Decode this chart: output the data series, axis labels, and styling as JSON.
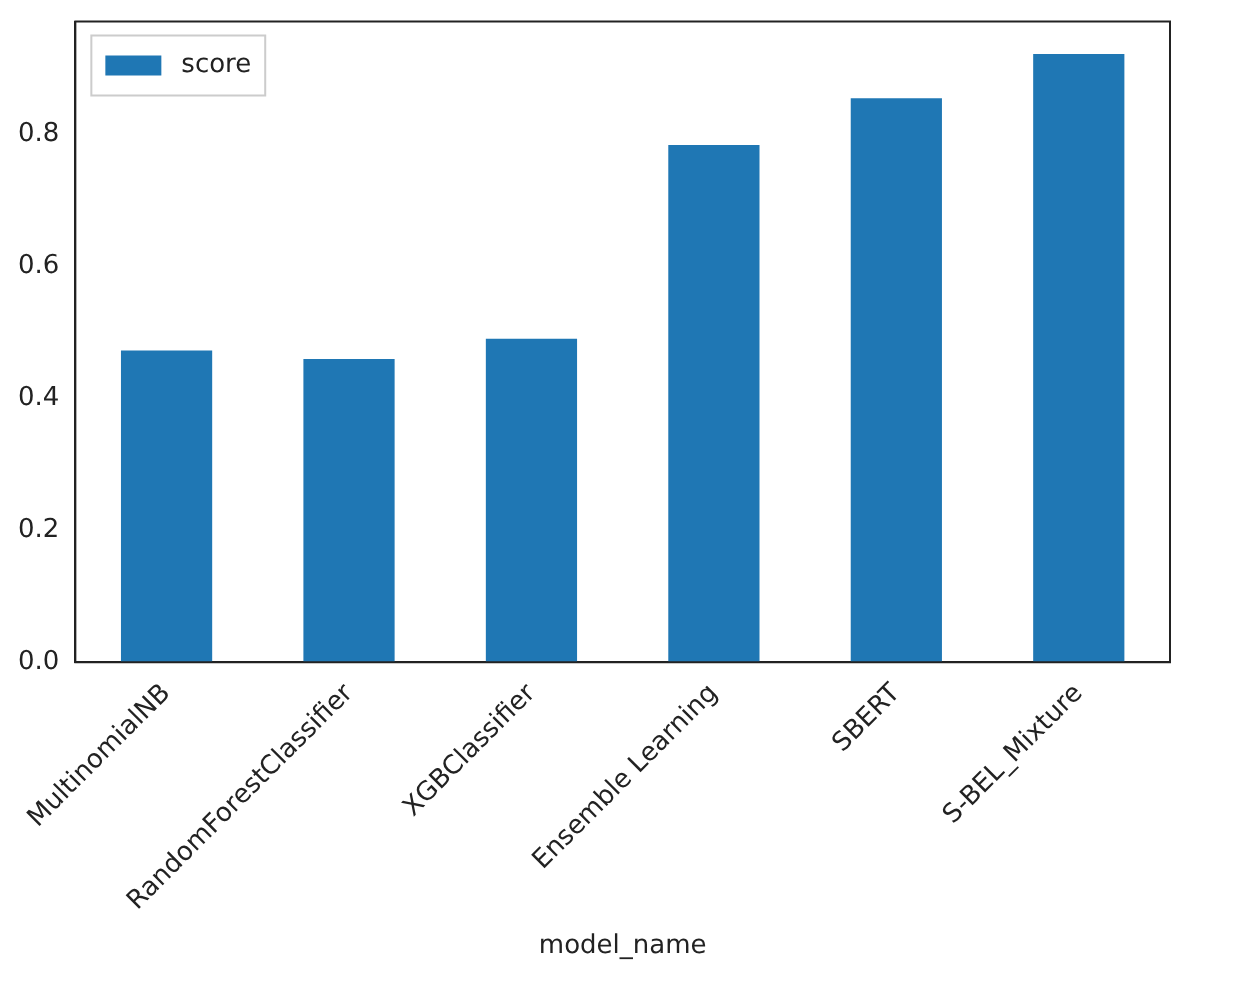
{
  "chart_data": {
    "type": "bar",
    "xlabel": "model_name",
    "categories": [
      "MultinomialNB",
      "RandomForestClassifier",
      "XGBClassifier",
      "Ensemble Learning",
      "SBERT",
      "S-BEL_Mixture"
    ],
    "series": [
      {
        "name": "score",
        "color": "#1f77b4",
        "values": [
          0.472,
          0.459,
          0.49,
          0.783,
          0.854,
          0.921
        ]
      }
    ],
    "ylim": [
      0,
      0.97
    ],
    "yticks": [
      {
        "value": 0,
        "label": "0.0"
      },
      {
        "value": 0.2,
        "label": "0.2"
      },
      {
        "value": 0.4,
        "label": "0.4"
      },
      {
        "value": 0.6,
        "label": "0.6"
      },
      {
        "value": 0.8,
        "label": "0.8"
      }
    ],
    "grid": false,
    "legend": "top left"
  }
}
